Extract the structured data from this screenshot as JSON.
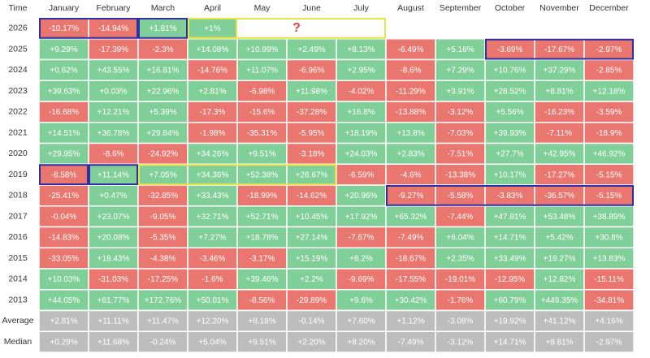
{
  "table": {
    "header": [
      "Time",
      "January",
      "February",
      "March",
      "April",
      "May",
      "June",
      "July",
      "August",
      "September",
      "October",
      "November",
      "December"
    ],
    "rows": [
      [
        "2026",
        "-10.17%",
        "-14.94%",
        "+1.81%",
        "+1%"
      ],
      [
        "2025",
        "+9.29%",
        "-17.39%",
        "-2.3%",
        "+14.08%",
        "+10.99%",
        "+2.49%",
        "+8.13%",
        "-6.49%",
        "+5.16%",
        "-3.69%",
        "-17.67%",
        "-2.97%"
      ],
      [
        "2024",
        "+0.62%",
        "+43.55%",
        "+16.81%",
        "-14.76%",
        "+11.07%",
        "-6.96%",
        "+2.95%",
        "-8.6%",
        "+7.29%",
        "+10.76%",
        "+37.29%",
        "-2.85%"
      ],
      [
        "2023",
        "+39.63%",
        "+0.03%",
        "+22.96%",
        "+2.81%",
        "-6.98%",
        "+11.98%",
        "-4.02%",
        "-11.29%",
        "+3.91%",
        "+28.52%",
        "+8.81%",
        "+12.18%"
      ],
      [
        "2022",
        "-16.68%",
        "+12.21%",
        "+5.39%",
        "-17.3%",
        "-15.6%",
        "-37.28%",
        "+16.8%",
        "-13.88%",
        "-3.12%",
        "+5.56%",
        "-16.23%",
        "-3.59%"
      ],
      [
        "2021",
        "+14.51%",
        "+36.78%",
        "+29.84%",
        "-1.98%",
        "-35.31%",
        "-5.95%",
        "+18.19%",
        "+13.8%",
        "-7.03%",
        "+39.93%",
        "-7.11%",
        "-18.9%"
      ],
      [
        "2020",
        "+29.95%",
        "-8.6%",
        "-24.92%",
        "+34.26%",
        "+9.51%",
        "-3.18%",
        "+24.03%",
        "+2.83%",
        "-7.51%",
        "+27.7%",
        "+42.95%",
        "+46.92%"
      ],
      [
        "2019",
        "-8.58%",
        "+11.14%",
        "+7.05%",
        "+34.36%",
        "+52.38%",
        "+26.67%",
        "-6.59%",
        "-4.6%",
        "-13.38%",
        "+10.17%",
        "-17.27%",
        "-5.15%"
      ],
      [
        "2018",
        "-25.41%",
        "+0.47%",
        "-32.85%",
        "+33.43%",
        "-18.99%",
        "-14.62%",
        "+20.96%",
        "-9.27%",
        "-5.58%",
        "-3.83%",
        "-36.57%",
        "-5.15%"
      ],
      [
        "2017",
        "-0.04%",
        "+23.07%",
        "-9.05%",
        "+32.71%",
        "+52.71%",
        "+10.45%",
        "+17.92%",
        "+65.32%",
        "-7.44%",
        "+47.81%",
        "+53.48%",
        "+38.89%"
      ],
      [
        "2016",
        "-14.83%",
        "+20.08%",
        "-5.35%",
        "+7.27%",
        "+18.78%",
        "+27.14%",
        "-7.67%",
        "-7.49%",
        "+6.04%",
        "+14.71%",
        "+5.42%",
        "+30.8%"
      ],
      [
        "2015",
        "-33.05%",
        "+18.43%",
        "-4.38%",
        "-3.46%",
        "-3.17%",
        "+15.19%",
        "+8.2%",
        "-18.67%",
        "+2.35%",
        "+33.49%",
        "+19.27%",
        "+13.83%"
      ],
      [
        "2014",
        "+10.03%",
        "-31.03%",
        "-17.25%",
        "-1.6%",
        "+39.46%",
        "+2.2%",
        "-9.69%",
        "-17.55%",
        "-19.01%",
        "-12.95%",
        "+12.82%",
        "-15.11%"
      ],
      [
        "2013",
        "+44.05%",
        "+61.77%",
        "+172.76%",
        "+50.01%",
        "-8.56%",
        "-29.89%",
        "+9.6%",
        "+30.42%",
        "-1.76%",
        "+60.79%",
        "+449.35%",
        "-34.81%"
      ]
    ],
    "summary": [
      [
        "Average",
        "+2.81%",
        "+11.11%",
        "+11.47%",
        "+12.20%",
        "+8.18%",
        "-0.14%",
        "+7.60%",
        "+1.12%",
        "-3.08%",
        "+19.92%",
        "+41.12%",
        "+4.16%"
      ],
      [
        "Median",
        "+0.29%",
        "+11.68%",
        "-0.24%",
        "+5.04%",
        "+9.51%",
        "+2.20%",
        "+8.20%",
        "-7.49%",
        "-3.12%",
        "+14.71%",
        "+8.81%",
        "-2.97%"
      ]
    ],
    "annotation": "?"
  }
}
